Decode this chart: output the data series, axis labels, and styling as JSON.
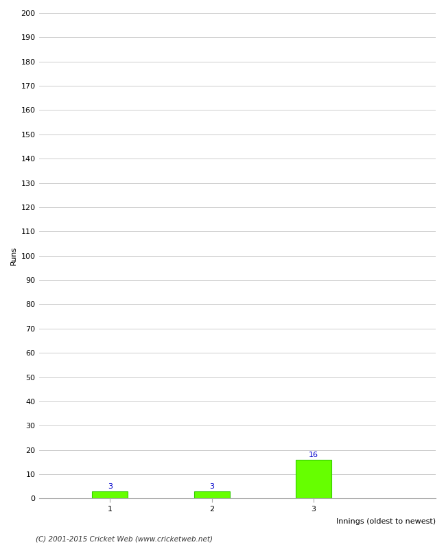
{
  "xlabel": "Innings (oldest to newest)",
  "ylabel": "Runs",
  "categories": [
    "1",
    "2",
    "3"
  ],
  "values": [
    3,
    3,
    16
  ],
  "bar_color": "#66ff00",
  "bar_edge_color": "#33cc00",
  "label_color": "#0000cc",
  "ylim": [
    0,
    200
  ],
  "yticks": [
    0,
    10,
    20,
    30,
    40,
    50,
    60,
    70,
    80,
    90,
    100,
    110,
    120,
    130,
    140,
    150,
    160,
    170,
    180,
    190,
    200
  ],
  "background_color": "#ffffff",
  "grid_color": "#cccccc",
  "footer": "(C) 2001-2015 Cricket Web (www.cricketweb.net)",
  "label_fontsize": 8,
  "axis_fontsize": 8,
  "ylabel_fontsize": 8,
  "xlabel_fontsize": 8,
  "bar_width": 0.35
}
